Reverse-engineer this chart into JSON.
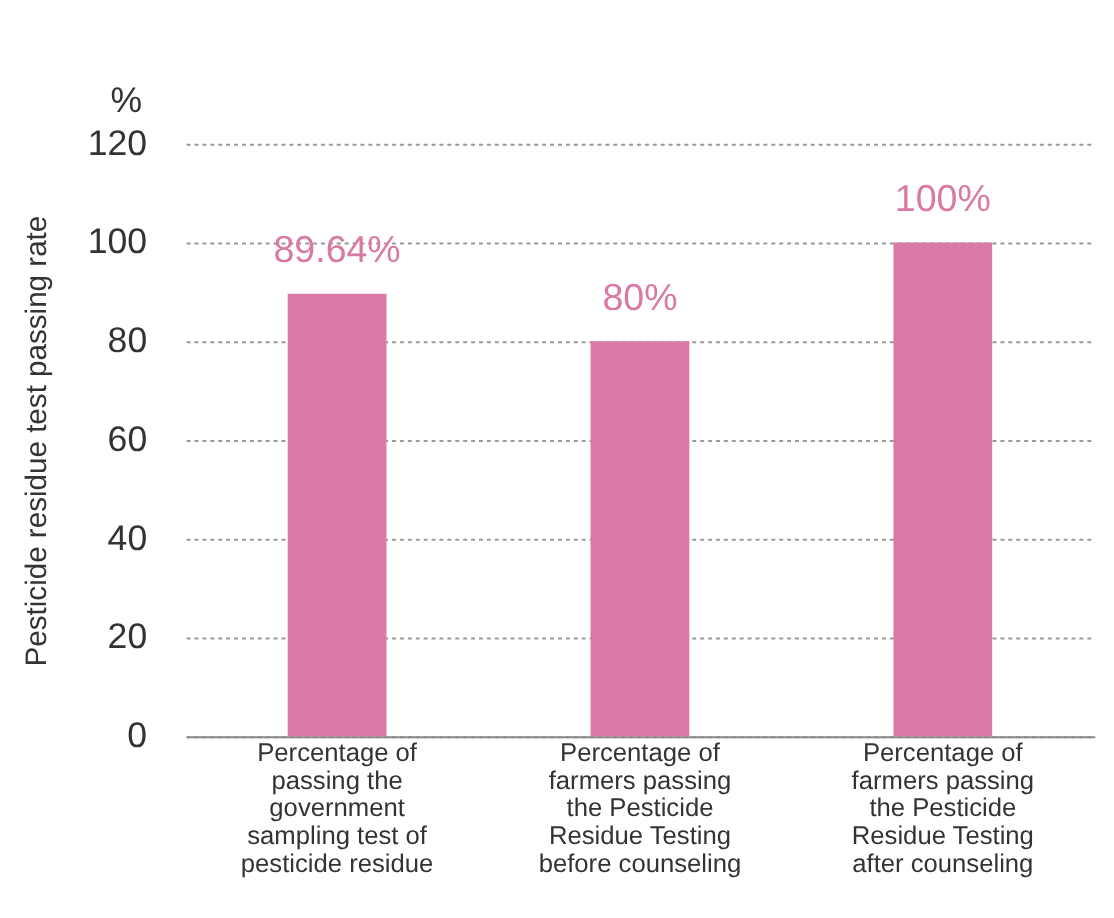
{
  "chart_data": {
    "type": "bar",
    "ylabel": "Pesticide residue test passing rate",
    "annotations": [
      "%"
    ],
    "categories": [
      "Percentage of passing the government sampling test of pesticide residue",
      "Percentage of farmers passing the Pesticide Residue Testing before counseling",
      "Percentage of farmers passing the Pesticide Residue Testing after counseling"
    ],
    "values": [
      89.64,
      80,
      100
    ],
    "color": "#d87aa5",
    "value_labels": [
      "89.64%",
      "80%",
      "100%"
    ],
    "ylim": [
      0,
      120
    ],
    "yticks": [
      0,
      20,
      40,
      60,
      80,
      100,
      120
    ],
    "grid": "y"
  }
}
